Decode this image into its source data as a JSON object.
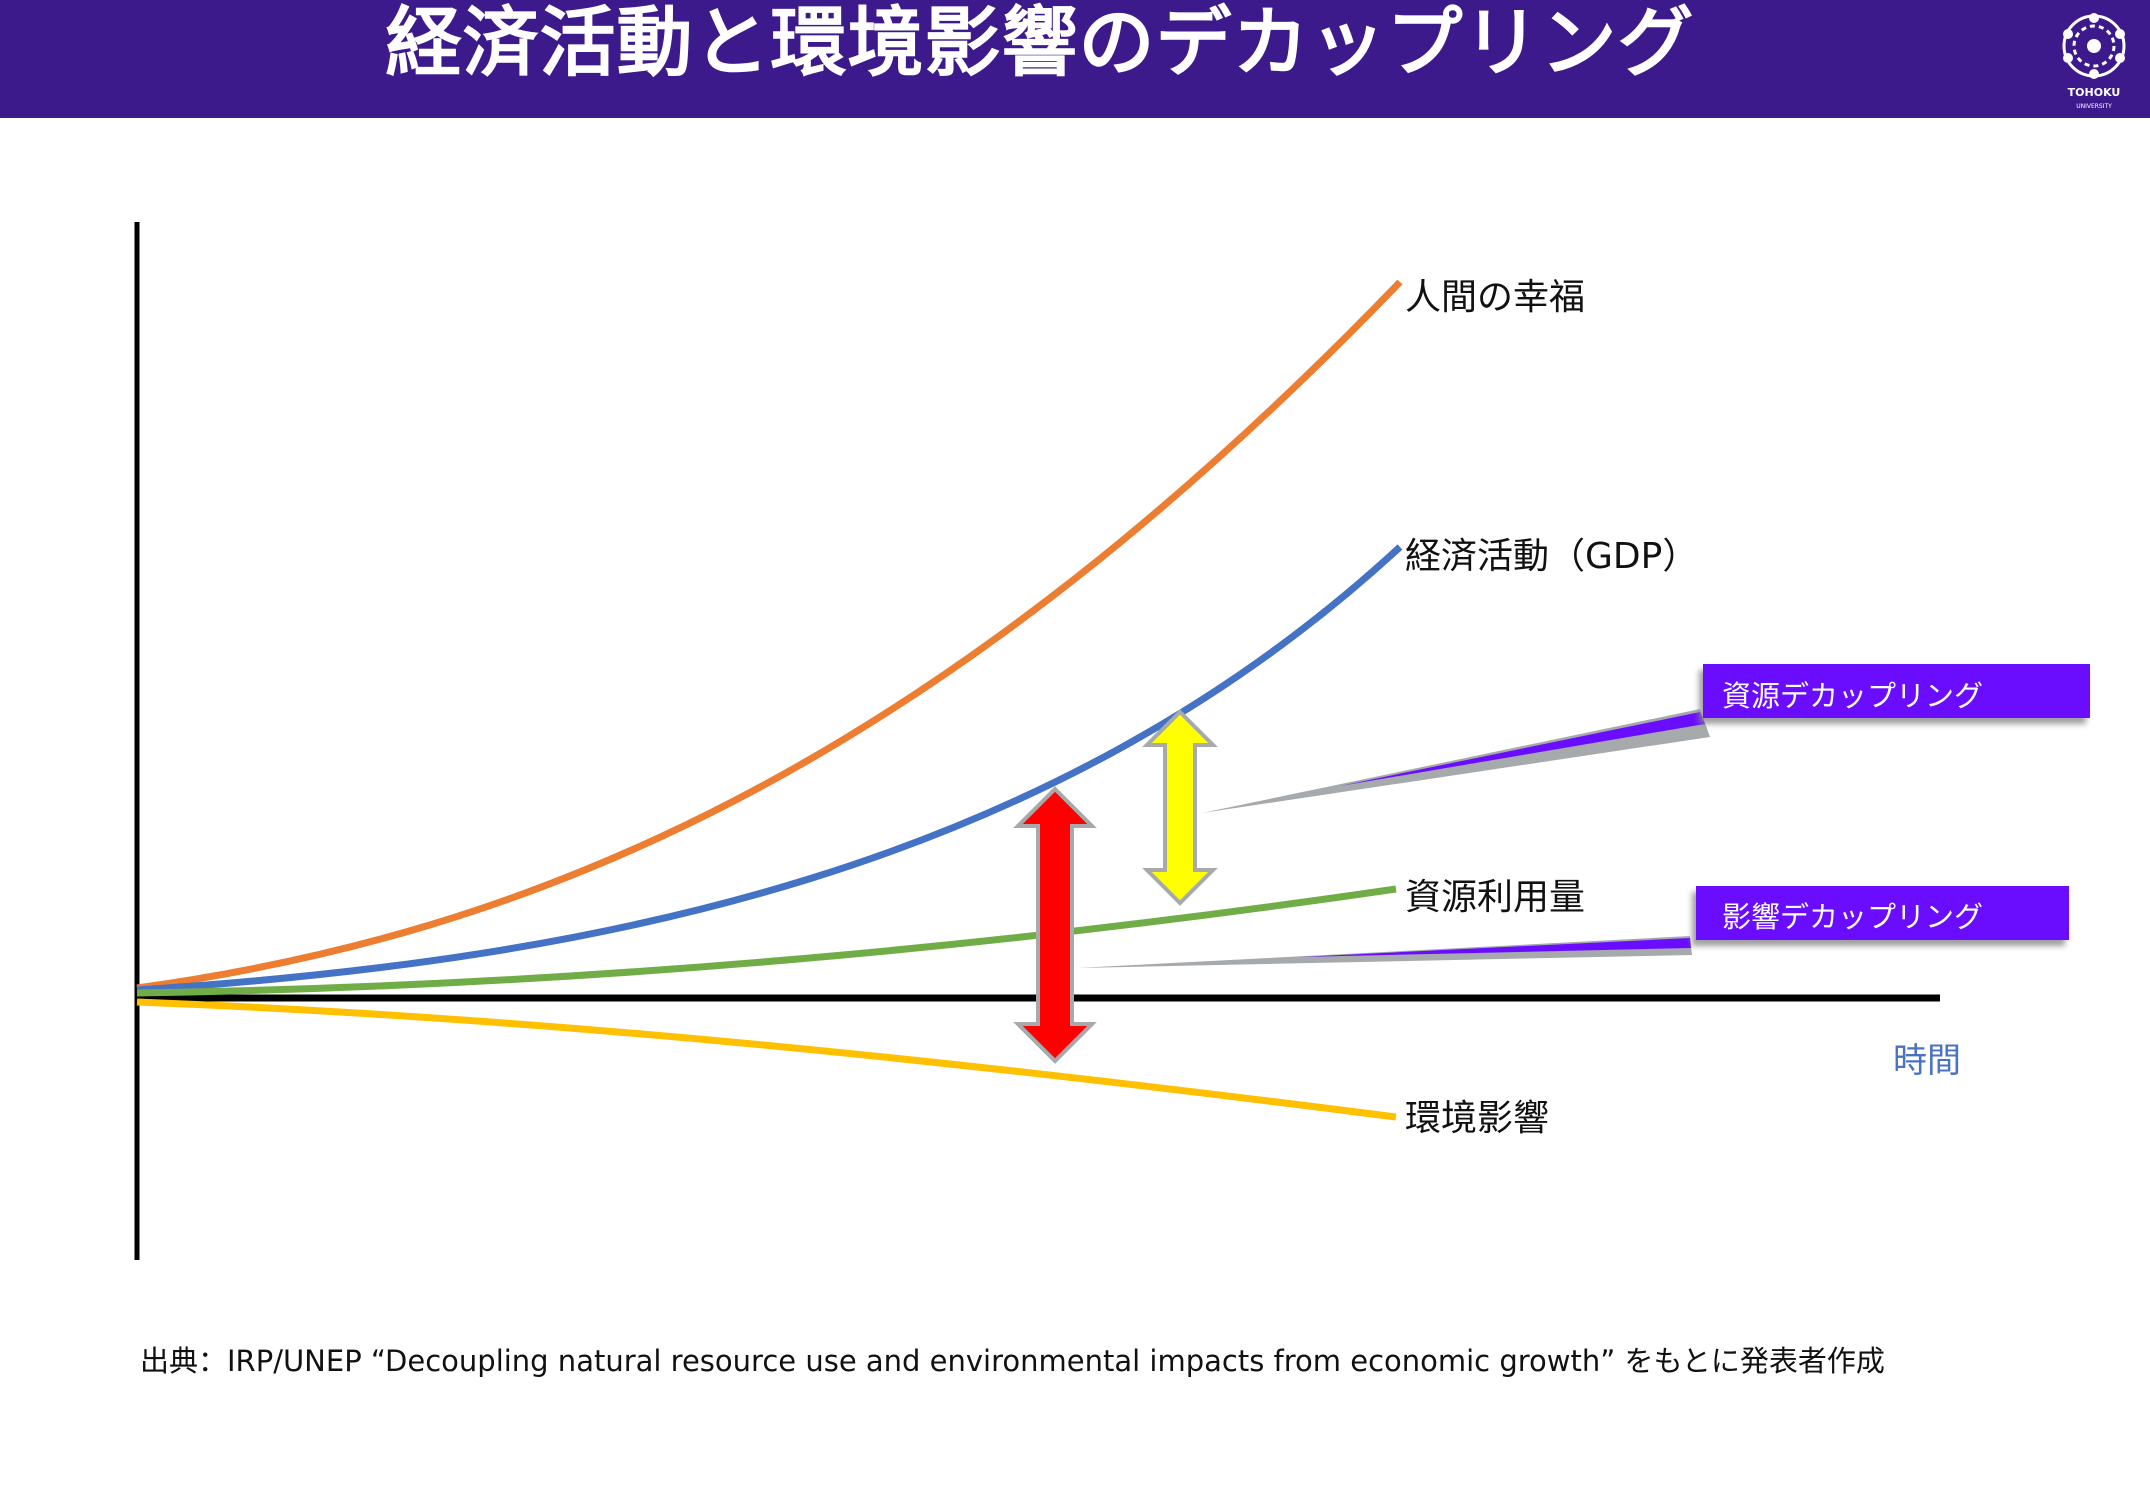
{
  "title": "経済活動と環境影響のデカップリング",
  "logo": {
    "text": "TOHOKU",
    "subtext": "UNIVERSITY"
  },
  "chart_data": {
    "type": "line",
    "title": "",
    "xlabel": "時間",
    "ylabel": "",
    "grid": false,
    "series": [
      {
        "name": "人間の幸福",
        "color": "#ed7d31"
      },
      {
        "name": "経済活動（GDP）",
        "color": "#4472c4"
      },
      {
        "name": "資源利用量",
        "color": "#70ad47"
      },
      {
        "name": "環境影響",
        "color": "#ffc000"
      }
    ]
  },
  "annotations": {
    "resource_decoupling": "資源デカップリング",
    "impact_decoupling": "影響デカップリング"
  },
  "colors": {
    "header": "#3d1a8c",
    "callout": "#6a0dff",
    "resource_arrow": "#ffff00",
    "impact_arrow": "#ff0000"
  },
  "source": "出典：IRP/UNEP “Decoupling natural resource use and environmental impacts from economic growth” をもとに発表者作成"
}
